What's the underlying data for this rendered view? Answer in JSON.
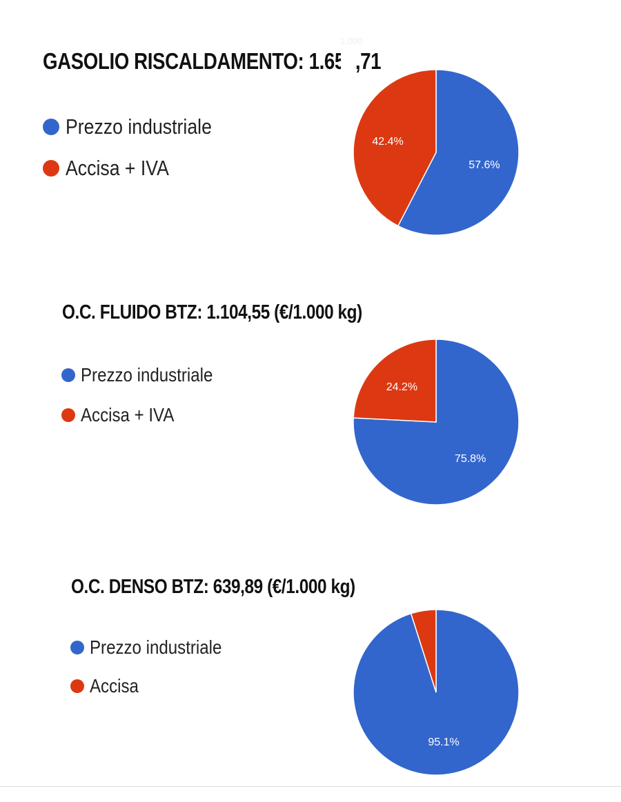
{
  "stray_label": "1.000",
  "colors": {
    "industrial": "#3366cc",
    "tax": "#dc3912",
    "slice_label": "#ffffff"
  },
  "chart_data": [
    {
      "type": "pie",
      "title": "GASOLIO RISCALDAMENTO: 1.652,71",
      "series": [
        {
          "name": "Prezzo industriale",
          "value": 57.6,
          "label": "57.6%",
          "color": "#3366cc"
        },
        {
          "name": "Accisa + IVA",
          "value": 42.4,
          "label": "42.4%",
          "color": "#dc3912"
        }
      ],
      "legend_position": "left"
    },
    {
      "type": "pie",
      "title": "O.C. FLUIDO BTZ: 1.104,55 (€/1.000 kg)",
      "series": [
        {
          "name": "Prezzo industriale",
          "value": 75.8,
          "label": "75.8%",
          "color": "#3366cc"
        },
        {
          "name": "Accisa + IVA",
          "value": 24.2,
          "label": "24.2%",
          "color": "#dc3912"
        }
      ],
      "legend_position": "left"
    },
    {
      "type": "pie",
      "title": "O.C. DENSO BTZ: 639,89 (€/1.000 kg)",
      "series": [
        {
          "name": "Prezzo industriale",
          "value": 95.1,
          "label": "95.1%",
          "color": "#3366cc"
        },
        {
          "name": "Accisa",
          "value": 4.9,
          "label": "",
          "color": "#dc3912"
        }
      ],
      "legend_position": "left"
    }
  ]
}
